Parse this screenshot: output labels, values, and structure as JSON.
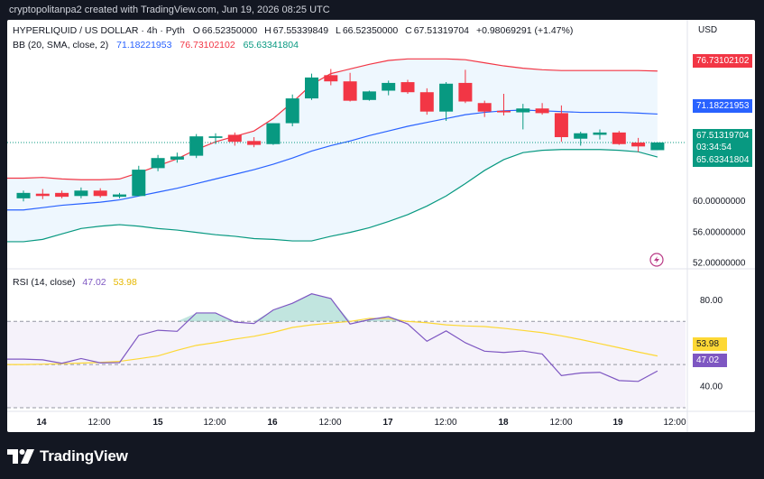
{
  "caption": "cryptopolitanpa2 created with TradingView.com, Jun 19, 2026 08:25 UTC",
  "header": {
    "symbol": "HYPERLIQUID / US DOLLAR · 4h · Pyth",
    "o_label": "O",
    "o": "66.52350000",
    "h_label": "H",
    "h": "67.55339849",
    "l_label": "L",
    "l": "66.52350000",
    "c_label": "C",
    "c": "67.51319704",
    "change": "+0.98069291 (+1.47%)",
    "bb_label": "BB (20, SMA, close, 2)",
    "bb_basis": "71.18221953",
    "bb_upper": "76.73102102",
    "bb_lower": "65.63341804",
    "currency": "USD",
    "rsi_label": "RSI (14, close)",
    "rsi_value": "47.02",
    "rsi_ma": "53.98"
  },
  "price_tags": {
    "upper": "76.73102102",
    "basis": "71.18221953",
    "close": "67.51319704",
    "countdown": "03:34:54",
    "lower": "65.63341804",
    "rsi": "47.02",
    "rsi_ma": "53.98"
  },
  "colors": {
    "up": "#089981",
    "down": "#f23645",
    "bb_basis": "#2962ff",
    "bb_upper": "#f23645",
    "bb_lower": "#089981",
    "rsi": "#7e57c2",
    "rsi_ma": "#fdd835"
  },
  "footer": {
    "brand": "TradingView"
  },
  "chart_data": [
    {
      "type": "candlestick",
      "title": "HYPERLIQUID / US DOLLAR · 4h · Pyth",
      "x_tick_labels": [
        "14",
        "12:00",
        "15",
        "12:00",
        "16",
        "12:00",
        "17",
        "12:00",
        "18",
        "12:00",
        "19",
        "12:00"
      ],
      "y_tick_labels": [
        "52.00000000",
        "56.00000000",
        "60.00000000",
        "72.00000000"
      ],
      "ylim": [
        50.5,
        79.5
      ],
      "candles": [
        {
          "o": 60.3,
          "h": 61.3,
          "l": 59.9,
          "c": 61.0
        },
        {
          "o": 60.9,
          "h": 61.5,
          "l": 60.2,
          "c": 60.6
        },
        {
          "o": 61.0,
          "h": 61.3,
          "l": 60.3,
          "c": 60.5
        },
        {
          "o": 60.6,
          "h": 61.7,
          "l": 60.3,
          "c": 61.3
        },
        {
          "o": 61.3,
          "h": 61.6,
          "l": 60.4,
          "c": 60.6
        },
        {
          "o": 60.5,
          "h": 61.0,
          "l": 60.3,
          "c": 60.8
        },
        {
          "o": 60.6,
          "h": 64.5,
          "l": 60.6,
          "c": 64.0
        },
        {
          "o": 64.2,
          "h": 65.9,
          "l": 63.8,
          "c": 65.5
        },
        {
          "o": 65.3,
          "h": 66.2,
          "l": 64.9,
          "c": 65.7
        },
        {
          "o": 65.8,
          "h": 68.6,
          "l": 65.5,
          "c": 68.3
        },
        {
          "o": 68.1,
          "h": 68.7,
          "l": 67.3,
          "c": 68.3
        },
        {
          "o": 68.5,
          "h": 68.8,
          "l": 67.1,
          "c": 67.6
        },
        {
          "o": 67.7,
          "h": 68.2,
          "l": 66.9,
          "c": 67.2
        },
        {
          "o": 67.3,
          "h": 70.0,
          "l": 67.2,
          "c": 70.0
        },
        {
          "o": 70.0,
          "h": 73.7,
          "l": 69.6,
          "c": 73.2
        },
        {
          "o": 73.2,
          "h": 76.4,
          "l": 73.0,
          "c": 75.9
        },
        {
          "o": 76.2,
          "h": 77.0,
          "l": 74.9,
          "c": 75.4
        },
        {
          "o": 75.4,
          "h": 76.5,
          "l": 72.8,
          "c": 72.9
        },
        {
          "o": 73.0,
          "h": 74.2,
          "l": 72.9,
          "c": 74.1
        },
        {
          "o": 74.2,
          "h": 75.5,
          "l": 73.6,
          "c": 75.2
        },
        {
          "o": 75.3,
          "h": 75.6,
          "l": 73.8,
          "c": 74.0
        },
        {
          "o": 74.0,
          "h": 74.5,
          "l": 71.1,
          "c": 71.5
        },
        {
          "o": 71.5,
          "h": 75.3,
          "l": 70.3,
          "c": 75.1
        },
        {
          "o": 75.2,
          "h": 76.9,
          "l": 72.6,
          "c": 72.8
        },
        {
          "o": 72.6,
          "h": 72.9,
          "l": 70.8,
          "c": 71.5
        },
        {
          "o": 71.6,
          "h": 73.8,
          "l": 71.0,
          "c": 71.4
        },
        {
          "o": 71.4,
          "h": 72.5,
          "l": 69.2,
          "c": 71.9
        },
        {
          "o": 71.9,
          "h": 72.6,
          "l": 71.1,
          "c": 71.3
        },
        {
          "o": 71.3,
          "h": 72.3,
          "l": 67.6,
          "c": 68.2
        },
        {
          "o": 68.0,
          "h": 68.9,
          "l": 67.1,
          "c": 68.7
        },
        {
          "o": 68.5,
          "h": 69.2,
          "l": 67.9,
          "c": 68.8
        },
        {
          "o": 68.8,
          "h": 69.0,
          "l": 67.2,
          "c": 67.3
        },
        {
          "o": 67.5,
          "h": 68.1,
          "l": 66.3,
          "c": 67.0
        },
        {
          "o": 66.52,
          "h": 67.55,
          "l": 66.52,
          "c": 67.51
        }
      ],
      "bb_upper": [
        62.9,
        63.0,
        62.8,
        62.7,
        62.7,
        62.8,
        63.6,
        64.5,
        65.4,
        66.6,
        67.6,
        68.3,
        69.0,
        70.6,
        72.7,
        75.0,
        76.4,
        77.0,
        77.6,
        78.1,
        78.3,
        78.3,
        78.3,
        78.2,
        77.8,
        77.4,
        77.1,
        76.9,
        76.8,
        76.8,
        76.8,
        76.8,
        76.8,
        76.73
      ],
      "bb_basis": [
        58.8,
        59.1,
        59.4,
        59.6,
        59.8,
        60.1,
        60.6,
        61.1,
        61.6,
        62.2,
        62.8,
        63.4,
        64.0,
        64.7,
        65.5,
        66.4,
        67.1,
        67.7,
        68.4,
        69.0,
        69.6,
        70.1,
        70.6,
        71.1,
        71.4,
        71.6,
        71.7,
        71.6,
        71.5,
        71.4,
        71.4,
        71.4,
        71.3,
        71.18
      ],
      "bb_lower": [
        54.7,
        55.0,
        55.7,
        56.4,
        56.7,
        56.9,
        56.7,
        56.4,
        56.2,
        55.9,
        55.6,
        55.4,
        55.1,
        55.0,
        54.8,
        54.8,
        55.4,
        55.9,
        56.5,
        57.3,
        58.2,
        59.3,
        60.6,
        62.2,
        63.9,
        65.3,
        66.2,
        66.5,
        66.6,
        66.6,
        66.6,
        66.5,
        66.3,
        65.63
      ],
      "bb_labels": [
        "BB basis",
        "BB upper",
        "BB lower"
      ]
    },
    {
      "type": "line",
      "title": "RSI (14, close)",
      "y_tick_labels": [
        "40.00",
        "60.00",
        "80.00"
      ],
      "ylim": [
        30,
        86
      ],
      "bands": [
        30,
        50,
        70
      ],
      "series": [
        {
          "name": "RSI",
          "values": [
            52.5,
            52.2,
            50.6,
            52.8,
            50.8,
            50.9,
            63.5,
            65.9,
            65.4,
            73.9,
            73.9,
            69.7,
            69.0,
            75.3,
            78.4,
            82.8,
            80.6,
            68.8,
            70.8,
            72.2,
            68.8,
            60.8,
            65.6,
            60.1,
            56.2,
            55.6,
            56.3,
            54.9,
            44.9,
            46.1,
            46.4,
            42.6,
            42.2,
            47.02
          ]
        },
        {
          "name": "RSI-based MA",
          "values": [
            50.0,
            50.2,
            50.4,
            50.7,
            51.0,
            51.5,
            52.7,
            54.0,
            56.6,
            58.9,
            60.2,
            61.8,
            63.1,
            64.9,
            67.2,
            68.4,
            69.2,
            70.0,
            71.4,
            71.3,
            70.0,
            69.4,
            68.4,
            67.9,
            67.6,
            66.8,
            65.8,
            64.8,
            63.3,
            61.6,
            59.7,
            57.8,
            55.8,
            53.98
          ]
        }
      ]
    }
  ]
}
